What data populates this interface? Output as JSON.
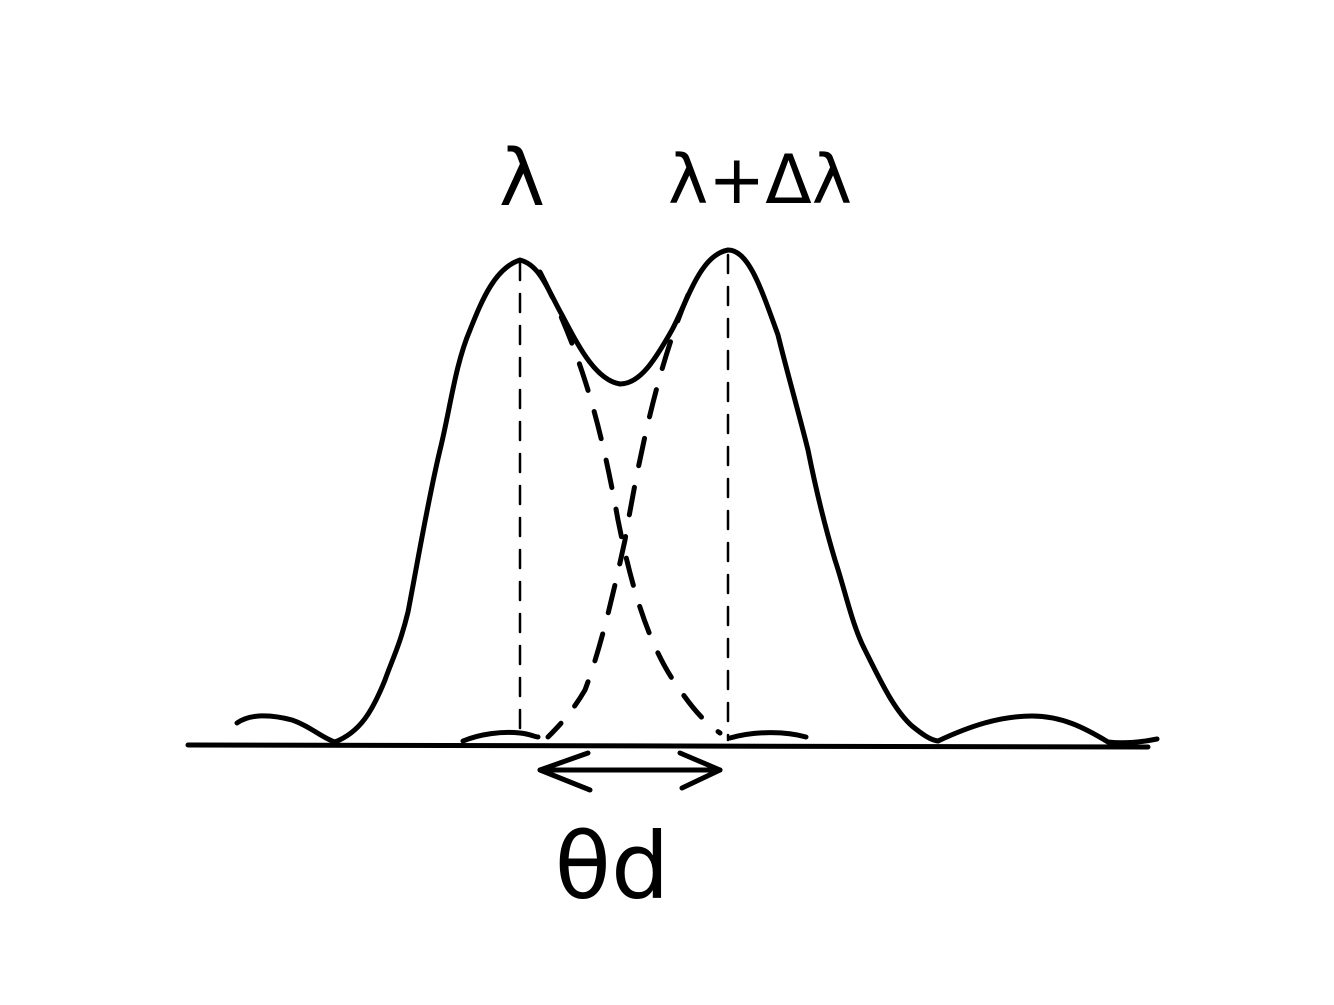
{
  "figure": {
    "peak1_label": "λ",
    "peak2_label": "λ+Δλ",
    "separation_label": "θd",
    "ink_color": "#000000",
    "background_color": "#ffffff"
  }
}
